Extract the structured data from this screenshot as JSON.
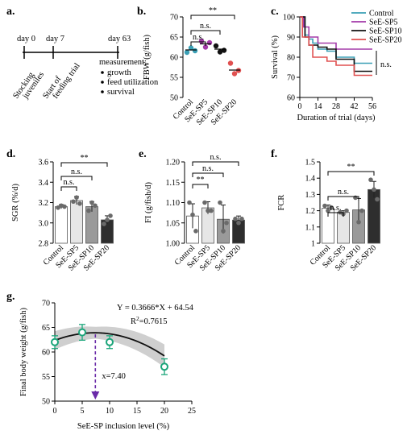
{
  "panels": {
    "a": {
      "label": "a.",
      "days": [
        "day 0",
        "day 7",
        "day 63"
      ],
      "stocking": [
        "Stocking",
        "juveniles"
      ],
      "start": [
        "Start of",
        "feeding trial"
      ],
      "measurement_title": "measurement:",
      "measurements": [
        "growth",
        "feed utilization",
        "survival"
      ]
    },
    "b": {
      "label": "b."
    },
    "c": {
      "label": "c."
    },
    "d": {
      "label": "d."
    },
    "e": {
      "label": "e."
    },
    "f": {
      "label": "f."
    },
    "g": {
      "label": "g."
    }
  },
  "colors": {
    "control": "#3a9fb5",
    "sp5": "#a33aa8",
    "sp10": "#111111",
    "sp20": "#e05050",
    "fit_line": "#111111",
    "ci_band": "#cfcfcf",
    "points_g": "#1aa57a",
    "arrow": "#6a2aa8"
  },
  "chart_data": [
    {
      "id": "b",
      "type": "scatter",
      "ylabel": "FBW (g/fish)",
      "ylim": [
        50,
        70
      ],
      "yticks": [
        50,
        55,
        60,
        65,
        70
      ],
      "categories": [
        "Control",
        "SeE-SP5",
        "SeE-SP10",
        "SeE-SP20"
      ],
      "points": [
        [
          61.2,
          62.3,
          61.6
        ],
        [
          64.0,
          62.5,
          63.6
        ],
        [
          62.8,
          61.3,
          61.7
        ],
        [
          58.5,
          55.9,
          56.7
        ]
      ],
      "means": [
        61.8,
        63.3,
        62.0,
        56.8
      ],
      "significance": [
        {
          "from": 0,
          "to": 1,
          "label": "n.s."
        },
        {
          "from": 0,
          "to": 2,
          "label": "n.s."
        },
        {
          "from": 0,
          "to": 3,
          "label": "**"
        }
      ]
    },
    {
      "id": "c",
      "type": "line",
      "xlabel": "Duration of trial (days)",
      "ylabel": "Survival (%)",
      "xlim": [
        0,
        56
      ],
      "ylim": [
        60,
        100
      ],
      "xticks": [
        0,
        14,
        28,
        42,
        56
      ],
      "yticks": [
        60,
        70,
        80,
        90,
        100
      ],
      "legend_position": "top-right",
      "annotation": "n.s.",
      "series": [
        {
          "name": "Control",
          "steps": [
            [
              0,
              100
            ],
            [
              4,
              91
            ],
            [
              7,
              89
            ],
            [
              10,
              87
            ],
            [
              14,
              84
            ],
            [
              21,
              83
            ],
            [
              28,
              80
            ],
            [
              42,
              77
            ],
            [
              56,
              77
            ]
          ]
        },
        {
          "name": "SeE-SP5",
          "steps": [
            [
              0,
              100
            ],
            [
              3,
              95
            ],
            [
              7,
              90
            ],
            [
              14,
              87
            ],
            [
              26,
              87
            ],
            [
              28,
              84
            ],
            [
              56,
              84
            ]
          ]
        },
        {
          "name": "SeE-SP10",
          "steps": [
            [
              0,
              100
            ],
            [
              4,
              90
            ],
            [
              7,
              86
            ],
            [
              14,
              85
            ],
            [
              21,
              84
            ],
            [
              28,
              79
            ],
            [
              42,
              73
            ],
            [
              56,
              73
            ]
          ]
        },
        {
          "name": "SeE-SP20",
          "steps": [
            [
              0,
              100
            ],
            [
              2,
              90
            ],
            [
              7,
              86
            ],
            [
              10,
              80
            ],
            [
              21,
              78
            ],
            [
              28,
              76
            ],
            [
              42,
              71
            ],
            [
              56,
              71
            ]
          ]
        }
      ]
    },
    {
      "id": "d",
      "type": "bar",
      "ylabel": "SGR (%/d)",
      "ylim": [
        2.8,
        3.6
      ],
      "yticks": [
        "2.8",
        "3.0",
        "3.2",
        "3.4",
        "3.6"
      ],
      "categories": [
        "Control",
        "SeE-SP5",
        "SeE-SP10",
        "SeE-SP20"
      ],
      "values": [
        3.16,
        3.22,
        3.16,
        3.03
      ],
      "errors": [
        0.02,
        0.04,
        0.05,
        0.04
      ],
      "points": [
        [
          3.15,
          3.17,
          3.16
        ],
        [
          3.21,
          3.25,
          3.19
        ],
        [
          3.12,
          3.2,
          3.17
        ],
        [
          2.99,
          3.03,
          3.07
        ]
      ],
      "significance": [
        {
          "from": 0,
          "to": 1,
          "label": "n.s."
        },
        {
          "from": 0,
          "to": 2,
          "label": "n.s."
        },
        {
          "from": 0,
          "to": 3,
          "label": "**"
        }
      ]
    },
    {
      "id": "e",
      "type": "bar",
      "ylabel": "FI (g/fish/d)",
      "ylim": [
        1.0,
        1.2
      ],
      "yticks": [
        "1.00",
        "1.05",
        "1.10",
        "1.15",
        "1.20"
      ],
      "categories": [
        "Control",
        "SeE-SP5",
        "SeE-SP10",
        "SeE-SP20"
      ],
      "values": [
        1.067,
        1.087,
        1.059,
        1.057
      ],
      "errors": [
        0.03,
        0.015,
        0.035,
        0.01
      ],
      "points": [
        [
          1.1,
          1.07,
          1.03
        ],
        [
          1.1,
          1.08,
          1.08
        ],
        [
          1.1,
          1.03,
          1.05
        ],
        [
          1.06,
          1.05,
          1.06
        ]
      ],
      "significance": [
        {
          "from": 0,
          "to": 1,
          "label": "**"
        },
        {
          "from": 0,
          "to": 2,
          "label": "n.s."
        },
        {
          "from": 0,
          "to": 3,
          "label": "n.s."
        }
      ]
    },
    {
      "id": "f",
      "type": "bar",
      "ylabel": "FCR",
      "ylim": [
        1.0,
        1.5
      ],
      "yticks": [
        "1",
        "1.1",
        "1.2",
        "1.3",
        "1.4",
        "1.5"
      ],
      "categories": [
        "Control",
        "SeE-SP5",
        "SeE-SP10",
        "SeE-SP20"
      ],
      "values": [
        1.215,
        1.19,
        1.205,
        1.33
      ],
      "errors": [
        0.02,
        0.01,
        0.07,
        0.05
      ],
      "points": [
        [
          1.23,
          1.2,
          1.22
        ],
        [
          1.19,
          1.18,
          1.2
        ],
        [
          1.28,
          1.13,
          1.2
        ],
        [
          1.39,
          1.33,
          1.27
        ]
      ],
      "significance": [
        {
          "from": 0,
          "to": 1,
          "label": "n.s."
        },
        {
          "from": 0,
          "to": 2,
          "label": "n.s."
        },
        {
          "from": 0,
          "to": 3,
          "label": "**"
        }
      ]
    },
    {
      "id": "g",
      "type": "scatter",
      "xlabel": "SeE-SP inclusion level (%)",
      "ylabel": "Final body weight (g/fish)",
      "xlim": [
        0,
        25
      ],
      "ylim": [
        50,
        70
      ],
      "xticks": [
        0,
        5,
        10,
        15,
        20,
        25
      ],
      "yticks": [
        50,
        55,
        60,
        65,
        70
      ],
      "x": [
        0,
        5,
        10,
        20
      ],
      "y": [
        62,
        64,
        62,
        57
      ],
      "errors": [
        1.3,
        1.6,
        1.3,
        1.6
      ],
      "equation": "Y = 0.3666*X + 64.54",
      "r2_prefix": "R",
      "r2_sup": "2",
      "r2_value": "=0.7615",
      "optimum_label": "x=7.40",
      "optimum_x": 7.4
    }
  ]
}
